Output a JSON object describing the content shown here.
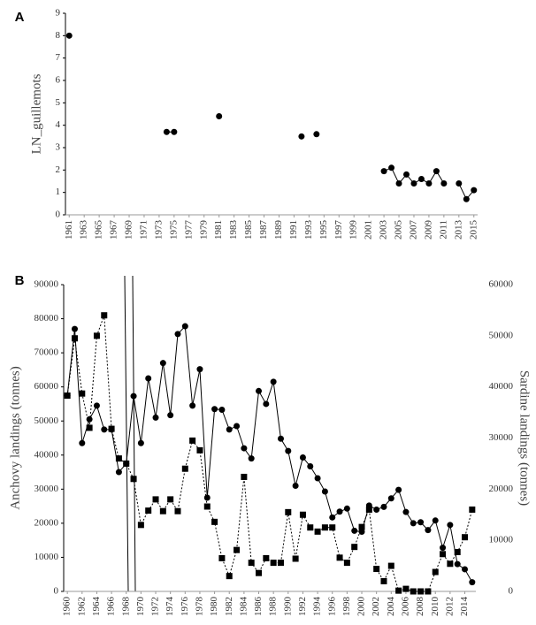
{
  "chart_data": [
    {
      "type": "line",
      "panel": "A",
      "ylabel": "LN_guillemots",
      "x": [
        1961,
        1962,
        1963,
        1964,
        1965,
        1966,
        1967,
        1968,
        1969,
        1970,
        1971,
        1972,
        1973,
        1974,
        1975,
        1976,
        1977,
        1978,
        1979,
        1980,
        1981,
        1982,
        1983,
        1984,
        1985,
        1986,
        1987,
        1988,
        1989,
        1990,
        1991,
        1992,
        1993,
        1994,
        1995,
        1996,
        1997,
        1998,
        1999,
        2000,
        2001,
        2002,
        2003,
        2004,
        2005,
        2006,
        2007,
        2008,
        2009,
        2010,
        2011,
        2012,
        2013,
        2014,
        2015
      ],
      "series": [
        {
          "color": "#000000",
          "marker": "circle",
          "dash": "solid",
          "values": [
            8.0,
            null,
            null,
            null,
            null,
            null,
            null,
            null,
            null,
            null,
            null,
            null,
            null,
            3.7,
            3.7,
            null,
            null,
            null,
            null,
            null,
            4.4,
            null,
            null,
            null,
            null,
            null,
            null,
            null,
            null,
            null,
            null,
            3.5,
            null,
            3.6,
            null,
            null,
            null,
            null,
            null,
            null,
            null,
            null,
            1.95,
            2.1,
            1.4,
            1.8,
            1.4,
            1.6,
            1.4,
            1.95,
            1.4,
            null,
            1.4,
            0.7,
            1.1
          ]
        }
      ],
      "xlim": [
        1960.5,
        2015.5
      ],
      "xticks": [
        1961,
        1963,
        1965,
        1967,
        1969,
        1971,
        1973,
        1975,
        1977,
        1979,
        1981,
        1983,
        1985,
        1987,
        1989,
        1991,
        1993,
        1995,
        1997,
        1999,
        2001,
        2003,
        2005,
        2007,
        2009,
        2011,
        2013,
        2015
      ],
      "ylim": [
        0,
        9
      ],
      "yticks": [
        0,
        1,
        2,
        3,
        4,
        5,
        6,
        7,
        8,
        9
      ]
    },
    {
      "type": "line",
      "panel": "B",
      "ylabel": "Anchovy landings (tonnes)",
      "y2label": "Sardine landings (tonnes)",
      "x": [
        1960,
        1961,
        1962,
        1963,
        1964,
        1965,
        1966,
        1967,
        1968,
        1969,
        1970,
        1971,
        1972,
        1973,
        1974,
        1975,
        1976,
        1977,
        1978,
        1979,
        1980,
        1981,
        1982,
        1983,
        1984,
        1985,
        1986,
        1987,
        1988,
        1989,
        1990,
        1991,
        1992,
        1993,
        1994,
        1995,
        1996,
        1997,
        1998,
        1999,
        2000,
        2001,
        2002,
        2003,
        2004,
        2005,
        2006,
        2007,
        2008,
        2009,
        2010,
        2011,
        2012,
        2013,
        2014,
        2015
      ],
      "series": [
        {
          "color": "#000000",
          "marker": "circle",
          "dash": "solid",
          "values": [
            57500,
            77000,
            43500,
            50500,
            54500,
            47500,
            47500,
            35000,
            37500,
            57300,
            43500,
            62500,
            51000,
            67000,
            51700,
            75500,
            77800,
            54500,
            65200,
            27500,
            53500,
            53300,
            47500,
            48500,
            42000,
            39000,
            58800,
            55000,
            61500,
            44800,
            41200,
            31000,
            39300,
            36700,
            33200,
            29300,
            21700,
            23400,
            24300,
            17800,
            17500,
            25200,
            24000,
            24800,
            27300,
            29800,
            23300,
            20000,
            20300,
            18000,
            20800,
            12800,
            19500,
            8000,
            6500,
            2700
          ]
        },
        {
          "color": "#000000",
          "marker": "square",
          "dash": "dotted",
          "axis": "y2",
          "values": [
            38300,
            49500,
            38700,
            32000,
            50000,
            54000,
            31800,
            26000,
            25000,
            22000,
            13000,
            15800,
            18000,
            15700,
            18000,
            15700,
            24000,
            29500,
            27600,
            16600,
            13600,
            6500,
            3000,
            8100,
            22400,
            5600,
            3600,
            6500,
            5600,
            5600,
            15500,
            6400,
            15000,
            12500,
            11700,
            12500,
            12500,
            6600,
            5600,
            8700,
            12600,
            16000,
            4400,
            2000,
            5000,
            150,
            500,
            0,
            0,
            0,
            3800,
            7300,
            5400,
            7700,
            10600,
            16000
          ]
        }
      ],
      "xlim": [
        1959.5,
        2015.5
      ],
      "xticks": [
        1960,
        1962,
        1964,
        1966,
        1968,
        1970,
        1972,
        1974,
        1976,
        1978,
        1980,
        1982,
        1984,
        1986,
        1988,
        1990,
        1992,
        1994,
        1996,
        1998,
        2000,
        2002,
        2004,
        2006,
        2008,
        2010,
        2012,
        2014
      ],
      "ylim": [
        0,
        90000
      ],
      "yticks": [
        0,
        10000,
        20000,
        30000,
        40000,
        50000,
        60000,
        70000,
        80000,
        90000
      ],
      "y2lim": [
        0,
        60000
      ],
      "y2ticks": [
        0,
        10000,
        20000,
        30000,
        40000,
        50000,
        60000
      ]
    }
  ]
}
